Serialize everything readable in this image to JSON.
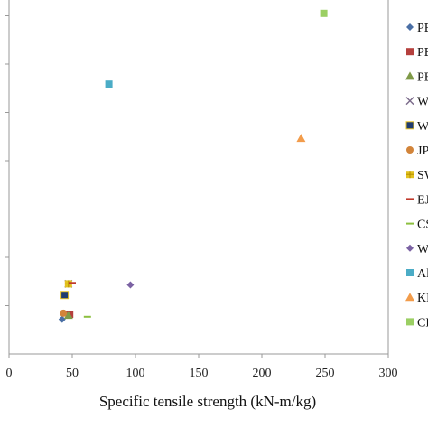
{
  "chart_data": {
    "type": "scatter",
    "xlabel": "Specific tensile strength (kN-m/kg)",
    "ylabel": "",
    "xlim": [
      0,
      300
    ],
    "ylim": [
      0,
      7
    ],
    "x_ticks": [
      "0",
      "50",
      "100",
      "150",
      "200",
      "250",
      "300"
    ],
    "grid": false,
    "legend_position": "right",
    "series": [
      {
        "name": "PE",
        "marker": "diamond",
        "color": "#4a6fa5",
        "x": 42,
        "y": 0.4
      },
      {
        "name": "PE",
        "marker": "square",
        "color": "#b5403d",
        "x": 48,
        "y": 0.5
      },
      {
        "name": "PE",
        "marker": "triangle",
        "color": "#7f9a48",
        "x": 47,
        "y": 0.48
      },
      {
        "name": "W",
        "marker": "x",
        "color": "#7a6a8a",
        "x": 47,
        "y": 1.1
      },
      {
        "name": "W",
        "marker": "square-outline",
        "color": "#1f3b70",
        "x": 44,
        "y": 0.88
      },
      {
        "name": "JP",
        "marker": "circle",
        "color": "#d2843a",
        "x": 43,
        "y": 0.52
      },
      {
        "name": "SW",
        "marker": "plus-square",
        "color": "#e3c21f",
        "x": 47,
        "y": 1.1
      },
      {
        "name": "EJ",
        "marker": "dash",
        "color": "#c0392b",
        "x": 50,
        "y": 1.12
      },
      {
        "name": "CS",
        "marker": "dash",
        "color": "#8cbf3f",
        "x": 62,
        "y": 0.45
      },
      {
        "name": "W",
        "marker": "diamond",
        "color": "#7b62a3",
        "x": 96,
        "y": 1.08
      },
      {
        "name": "Al",
        "marker": "square",
        "color": "#4bacc6",
        "x": 79,
        "y": 5.05
      },
      {
        "name": "KE",
        "marker": "triangle",
        "color": "#f29c4b",
        "x": 231,
        "y": 3.98
      },
      {
        "name": "CE",
        "marker": "square",
        "color": "#9bcf63",
        "x": 249,
        "y": 6.45
      }
    ]
  }
}
